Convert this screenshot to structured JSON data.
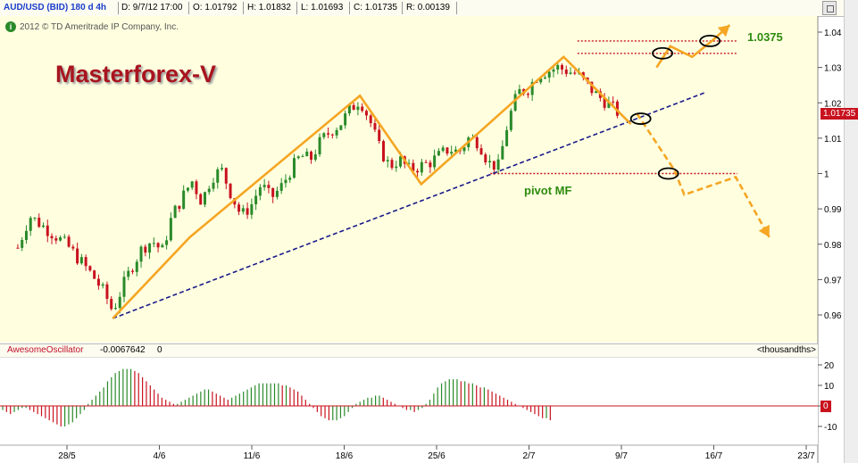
{
  "header": {
    "symbol": "AUD/USD (BID) 180 d 4h",
    "date": "D: 9/7/12 17:00",
    "open": "O: 1.01792",
    "high": "H: 1.01832",
    "low": "L: 1.01693",
    "close": "C: 1.01735",
    "range": "R: 0.00139"
  },
  "copyright": "2012 © TD Ameritrade IP Company, Inc.",
  "brand": "Masterforex-V",
  "annotations": {
    "level_label": "1.0375",
    "pivot_label": "pivot MF"
  },
  "price_flag": "1.01735",
  "oscillator": {
    "name": "AwesomeOscillator",
    "value": "-0.0067642",
    "zero": "0",
    "units": "<thousandths>",
    "flag": "0"
  },
  "colors": {
    "up": "#2a8a2a",
    "down": "#c8121e",
    "background": "#ffffe0",
    "orange": "#f5a623",
    "trendline": "#1a1a8a",
    "level": "#c8121e"
  },
  "chart_data": [
    {
      "type": "candlestick",
      "title": "AUD/USD (BID) 180 d 4h",
      "x_tick_labels": [
        "28/5",
        "4/6",
        "11/6",
        "18/6",
        "25/6",
        "2/7",
        "9/7",
        "16/7",
        "23/7"
      ],
      "y_tick_labels": [
        "0.96",
        "0.97",
        "0.98",
        "0.99",
        "1",
        "1.01",
        "1.02",
        "1.03",
        "1.04"
      ],
      "ylim": [
        0.955,
        1.042
      ],
      "last_price": 1.01735,
      "price_path": [
        [
          0.9,
          0.979
        ],
        [
          1.5,
          0.988
        ],
        [
          2.2,
          0.985
        ],
        [
          2.9,
          0.982
        ],
        [
          3.5,
          0.979
        ],
        [
          4.1,
          0.975
        ],
        [
          4.7,
          0.971
        ],
        [
          5.3,
          0.966
        ],
        [
          5.7,
          0.961
        ],
        [
          6.2,
          0.968
        ],
        [
          6.7,
          0.974
        ],
        [
          7.2,
          0.979
        ],
        [
          7.7,
          0.981
        ],
        [
          8.2,
          0.978
        ],
        [
          8.7,
          0.988
        ],
        [
          9.2,
          0.993
        ],
        [
          9.7,
          0.998
        ],
        [
          10.2,
          0.992
        ],
        [
          10.7,
          0.999
        ],
        [
          11.2,
          1.001
        ],
        [
          11.7,
          0.994
        ],
        [
          12.2,
          0.988
        ],
        [
          12.7,
          0.991
        ],
        [
          13.2,
          0.997
        ],
        [
          13.7,
          0.993
        ],
        [
          14.2,
          0.996
        ],
        [
          14.7,
          1.001
        ],
        [
          15.2,
          1.005
        ],
        [
          15.7,
          1.004
        ],
        [
          16.2,
          1.009
        ],
        [
          16.7,
          1.012
        ],
        [
          17.2,
          1.014
        ],
        [
          17.7,
          1.018
        ],
        [
          18.2,
          1.021
        ],
        [
          18.7,
          1.015
        ],
        [
          19.2,
          1.007
        ],
        [
          19.7,
          1.002
        ],
        [
          20.2,
          1.004
        ],
        [
          20.7,
          1.001
        ],
        [
          21.2,
          1.002
        ],
        [
          21.7,
          1.003
        ],
        [
          22.2,
          1.005
        ],
        [
          22.7,
          1.007
        ],
        [
          23.2,
          1.006
        ],
        [
          23.7,
          1.01
        ],
        [
          24.2,
          1.009
        ],
        [
          24.7,
          1.003
        ],
        [
          25.2,
          1.002
        ],
        [
          25.7,
          1.015
        ],
        [
          26.2,
          1.023
        ],
        [
          26.7,
          1.024
        ],
        [
          27.2,
          1.028
        ],
        [
          27.7,
          1.029
        ],
        [
          28.2,
          1.03
        ],
        [
          28.7,
          1.029
        ],
        [
          29.2,
          1.028
        ],
        [
          29.7,
          1.025
        ],
        [
          30.2,
          1.022
        ],
        [
          30.7,
          1.02
        ],
        [
          31.3,
          1.017
        ]
      ],
      "zigzag": [
        [
          5.7,
          0.959
        ],
        [
          9.6,
          0.982
        ],
        [
          18.2,
          1.022
        ],
        [
          21.3,
          0.997
        ],
        [
          28.5,
          1.033
        ],
        [
          31.9,
          1.014
        ]
      ],
      "trendline": [
        [
          5.7,
          0.959
        ],
        [
          35.7,
          1.023
        ]
      ],
      "levels": [
        {
          "y": 1.0375,
          "x_start": 29.2
        },
        {
          "y": 1.034,
          "x_start": 29.2
        },
        {
          "y": 1.0,
          "x_start": 24.8
        }
      ],
      "forecast_up": [
        [
          33.2,
          1.03
        ],
        [
          33.9,
          1.036
        ],
        [
          35.0,
          1.033
        ],
        [
          36.0,
          1.0375
        ],
        [
          36.9,
          1.042
        ]
      ],
      "forecast_down": [
        [
          32.2,
          1.017
        ],
        [
          34.1,
          1.001
        ],
        [
          34.6,
          0.994
        ],
        [
          37.2,
          0.999
        ],
        [
          38.9,
          0.982
        ]
      ],
      "circles": [
        [
          33.5,
          1.034
        ],
        [
          35.9,
          1.0375
        ],
        [
          32.4,
          1.0155
        ],
        [
          33.8,
          1.0
        ]
      ]
    },
    {
      "type": "bar",
      "title": "AwesomeOscillator",
      "y_tick_labels": [
        "20",
        "10",
        "0",
        "-10"
      ],
      "ylim": [
        -13,
        22
      ],
      "values": [
        -2,
        -3,
        -4,
        -3,
        -2,
        -1,
        -1,
        -2,
        -3,
        -4,
        -5,
        -6,
        -7,
        -8,
        -9,
        -10,
        -10,
        -9,
        -8,
        -6,
        -4,
        -2,
        1,
        3,
        5,
        7,
        9,
        12,
        14,
        16,
        17,
        18,
        18,
        18,
        17,
        16,
        14,
        12,
        10,
        8,
        6,
        4,
        3,
        2,
        1,
        1,
        2,
        3,
        4,
        5,
        6,
        7,
        8,
        8,
        7,
        6,
        5,
        4,
        3,
        4,
        5,
        6,
        7,
        8,
        9,
        10,
        11,
        11,
        11,
        11,
        11,
        11,
        10,
        10,
        9,
        8,
        7,
        5,
        3,
        1,
        -1,
        -3,
        -5,
        -6,
        -7,
        -7,
        -7,
        -6,
        -5,
        -3,
        -1,
        1,
        2,
        3,
        4,
        4,
        5,
        5,
        4,
        3,
        2,
        1,
        0,
        -1,
        -2,
        -2,
        -3,
        -2,
        -1,
        1,
        3,
        6,
        9,
        11,
        12,
        13,
        13,
        13,
        12,
        12,
        11,
        11,
        10,
        9,
        9,
        8,
        7,
        6,
        5,
        4,
        3,
        2,
        1,
        0,
        -1,
        -2,
        -3,
        -4,
        -5,
        -6,
        -6,
        -7
      ]
    }
  ]
}
